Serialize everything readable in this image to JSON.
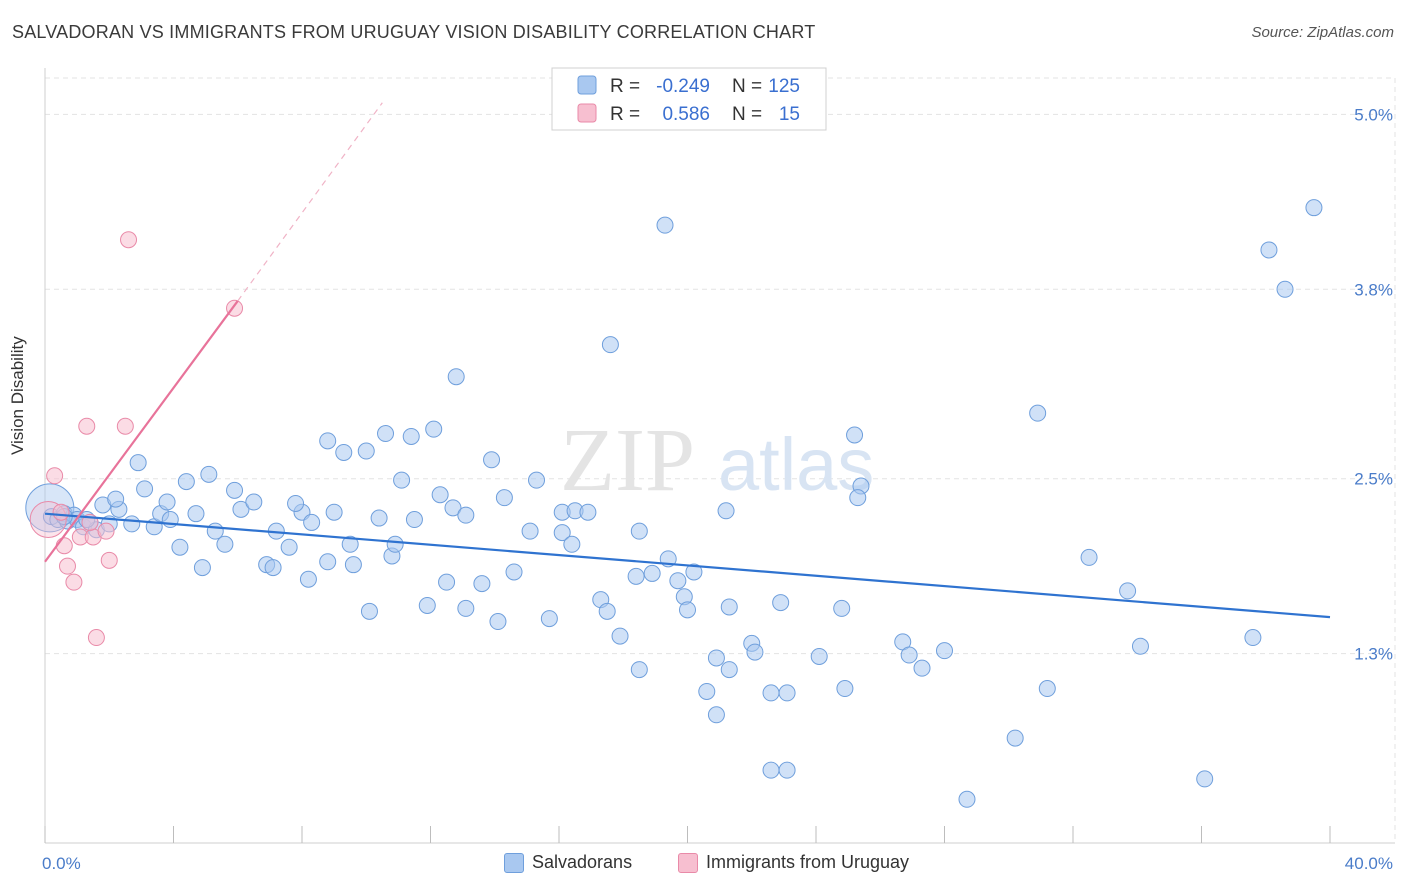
{
  "title": "SALVADORAN VS IMMIGRANTS FROM URUGUAY VISION DISABILITY CORRELATION CHART",
  "source": "Source: ZipAtlas.com",
  "watermark": {
    "zip": "ZIP",
    "atlas": "atlas"
  },
  "legend_box": {
    "rows": [
      {
        "r_label": "R =",
        "r_value": "-0.249",
        "n_label": "N =",
        "n_value": "125"
      },
      {
        "r_label": "R =",
        "r_value": "0.586",
        "n_label": "N =",
        "n_value": "15"
      }
    ]
  },
  "bottom_legend": {
    "items": [
      "Salvadorans",
      "Immigrants from Uruguay"
    ]
  },
  "colors": {
    "blue_fill": "#a9c8f0",
    "blue_stroke": "#6f9fdc",
    "blue_line": "#2f73d0",
    "pink_fill": "#f7bfd0",
    "pink_stroke": "#e98aa8",
    "pink_line": "#e8739a"
  },
  "chart_data": {
    "type": "scatter",
    "title": "SALVADORAN VS IMMIGRANTS FROM URUGUAY VISION DISABILITY CORRELATION CHART",
    "xlabel": "",
    "ylabel": "Vision Disability",
    "xlim": [
      0,
      40
    ],
    "ylim": [
      0,
      5.25
    ],
    "x_ticks": [
      "0.0%",
      "40.0%"
    ],
    "y_ticks": [
      {
        "value": 1.3,
        "label": "1.3%"
      },
      {
        "value": 2.5,
        "label": "2.5%"
      },
      {
        "value": 3.8,
        "label": "3.8%"
      },
      {
        "value": 5.0,
        "label": "5.0%"
      }
    ],
    "grid": true,
    "series": [
      {
        "name": "Salvadorans",
        "color": "#a9c8f0",
        "trend": {
          "x": [
            0,
            40
          ],
          "y": [
            2.26,
            1.55
          ]
        },
        "points": [
          [
            0.2,
            2.24
          ],
          [
            0.4,
            2.22
          ],
          [
            0.6,
            2.26
          ],
          [
            0.7,
            2.21
          ],
          [
            0.9,
            2.25
          ],
          [
            1.0,
            2.22
          ],
          [
            1.2,
            2.17
          ],
          [
            1.4,
            2.2
          ],
          [
            1.6,
            2.15
          ],
          [
            1.8,
            2.32
          ],
          [
            2.0,
            2.19
          ],
          [
            2.3,
            2.29
          ],
          [
            2.7,
            2.19
          ],
          [
            2.9,
            2.61
          ],
          [
            3.1,
            2.43
          ],
          [
            3.4,
            2.17
          ],
          [
            3.6,
            2.26
          ],
          [
            3.8,
            2.34
          ],
          [
            4.2,
            2.03
          ],
          [
            4.4,
            2.48
          ],
          [
            4.7,
            2.26
          ],
          [
            4.9,
            1.89
          ],
          [
            5.1,
            2.53
          ],
          [
            5.3,
            2.14
          ],
          [
            5.6,
            2.05
          ],
          [
            5.9,
            2.42
          ],
          [
            6.1,
            2.29
          ],
          [
            6.5,
            2.34
          ],
          [
            6.9,
            1.91
          ],
          [
            7.1,
            1.89
          ],
          [
            7.2,
            2.14
          ],
          [
            7.6,
            2.03
          ],
          [
            8.0,
            2.27
          ],
          [
            8.3,
            2.2
          ],
          [
            8.8,
            1.93
          ],
          [
            9.0,
            2.27
          ],
          [
            8.2,
            1.81
          ],
          [
            9.5,
            2.05
          ],
          [
            8.8,
            2.76
          ],
          [
            9.3,
            2.68
          ],
          [
            9.6,
            1.91
          ],
          [
            10.0,
            2.69
          ],
          [
            10.4,
            2.23
          ],
          [
            10.1,
            1.59
          ],
          [
            10.6,
            2.81
          ],
          [
            10.8,
            1.97
          ],
          [
            10.9,
            2.05
          ],
          [
            11.1,
            2.49
          ],
          [
            11.4,
            2.79
          ],
          [
            11.5,
            2.22
          ],
          [
            11.9,
            1.63
          ],
          [
            12.1,
            2.84
          ],
          [
            12.3,
            2.39
          ],
          [
            12.5,
            1.79
          ],
          [
            12.7,
            2.3
          ],
          [
            12.8,
            3.2
          ],
          [
            13.1,
            2.25
          ],
          [
            13.1,
            1.61
          ],
          [
            13.6,
            1.78
          ],
          [
            13.9,
            2.63
          ],
          [
            14.1,
            1.52
          ],
          [
            14.3,
            2.37
          ],
          [
            14.6,
            1.86
          ],
          [
            15.1,
            2.14
          ],
          [
            15.3,
            2.49
          ],
          [
            15.7,
            1.54
          ],
          [
            16.1,
            2.13
          ],
          [
            16.1,
            2.27
          ],
          [
            16.4,
            2.05
          ],
          [
            16.5,
            2.28
          ],
          [
            16.9,
            2.27
          ],
          [
            17.3,
            1.67
          ],
          [
            17.5,
            1.59
          ],
          [
            17.6,
            3.42
          ],
          [
            17.9,
            1.42
          ],
          [
            18.4,
            1.83
          ],
          [
            18.5,
            2.14
          ],
          [
            18.9,
            1.85
          ],
          [
            18.5,
            1.19
          ],
          [
            19.3,
            4.24
          ],
          [
            19.4,
            1.95
          ],
          [
            19.7,
            1.8
          ],
          [
            19.9,
            1.69
          ],
          [
            20.0,
            1.6
          ],
          [
            20.2,
            1.86
          ],
          [
            20.6,
            1.04
          ],
          [
            20.9,
            1.27
          ],
          [
            20.9,
            0.88
          ],
          [
            21.3,
            1.19
          ],
          [
            21.2,
            2.28
          ],
          [
            21.3,
            1.62
          ],
          [
            22.0,
            1.37
          ],
          [
            22.1,
            1.31
          ],
          [
            22.6,
            1.03
          ],
          [
            22.6,
            0.5
          ],
          [
            22.9,
            1.65
          ],
          [
            23.1,
            1.03
          ],
          [
            23.1,
            0.5
          ],
          [
            24.1,
            1.28
          ],
          [
            24.9,
            1.06
          ],
          [
            25.2,
            2.8
          ],
          [
            25.4,
            2.45
          ],
          [
            25.3,
            2.37
          ],
          [
            24.8,
            1.61
          ],
          [
            26.7,
            1.38
          ],
          [
            26.9,
            1.29
          ],
          [
            27.3,
            1.2
          ],
          [
            28.0,
            1.32
          ],
          [
            28.7,
            0.3
          ],
          [
            30.2,
            0.72
          ],
          [
            30.9,
            2.95
          ],
          [
            31.2,
            1.06
          ],
          [
            32.5,
            1.96
          ],
          [
            33.7,
            1.73
          ],
          [
            34.1,
            1.35
          ],
          [
            36.1,
            0.44
          ],
          [
            37.6,
            1.41
          ],
          [
            38.1,
            4.07
          ],
          [
            38.6,
            3.8
          ],
          [
            39.5,
            4.36
          ],
          [
            0.6,
            2.24
          ],
          [
            1.3,
            2.22
          ],
          [
            2.2,
            2.36
          ],
          [
            3.9,
            2.22
          ],
          [
            7.8,
            2.33
          ]
        ]
      },
      {
        "name": "Immigrants from Uruguay",
        "color": "#f7bfd0",
        "trend": {
          "x": [
            0,
            6
          ],
          "y": [
            1.93,
            3.72
          ]
        },
        "trend_extended": {
          "x": [
            6,
            10.5
          ],
          "y": [
            3.72,
            5.08
          ]
        },
        "points": [
          [
            0.3,
            2.52
          ],
          [
            0.5,
            2.27
          ],
          [
            0.6,
            2.04
          ],
          [
            0.7,
            1.9
          ],
          [
            0.9,
            1.79
          ],
          [
            1.1,
            2.1
          ],
          [
            1.3,
            2.86
          ],
          [
            1.5,
            2.1
          ],
          [
            1.6,
            1.41
          ],
          [
            1.9,
            2.14
          ],
          [
            2.0,
            1.94
          ],
          [
            2.5,
            2.86
          ],
          [
            2.6,
            4.14
          ],
          [
            5.9,
            3.67
          ],
          [
            1.4,
            2.2
          ]
        ]
      }
    ]
  }
}
